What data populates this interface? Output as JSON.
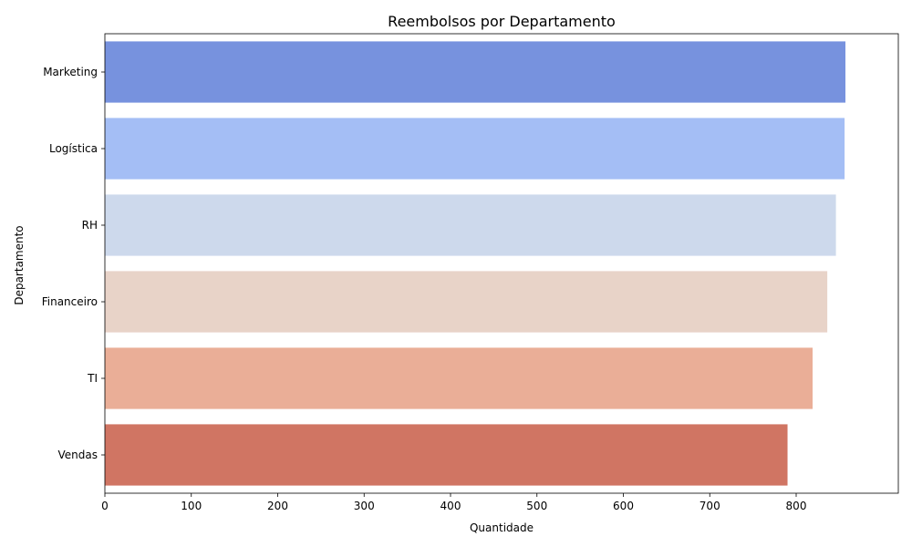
{
  "chart_data": {
    "type": "bar",
    "orientation": "horizontal",
    "title": "Reembolsos por Departamento",
    "xlabel": "Quantidade",
    "ylabel": "Departamento",
    "categories": [
      "Marketing",
      "Logística",
      "RH",
      "Financeiro",
      "TI",
      "Vendas"
    ],
    "values": [
      857,
      856,
      846,
      836,
      819,
      790
    ],
    "colors": [
      "#7792de",
      "#a4bef5",
      "#cdd9ec",
      "#e8d3c8",
      "#eaae97",
      "#d07563"
    ],
    "xlim": [
      0,
      900
    ],
    "xticks": [
      0,
      100,
      200,
      300,
      400,
      500,
      600,
      700,
      800
    ],
    "grid": false,
    "legend": "none"
  }
}
